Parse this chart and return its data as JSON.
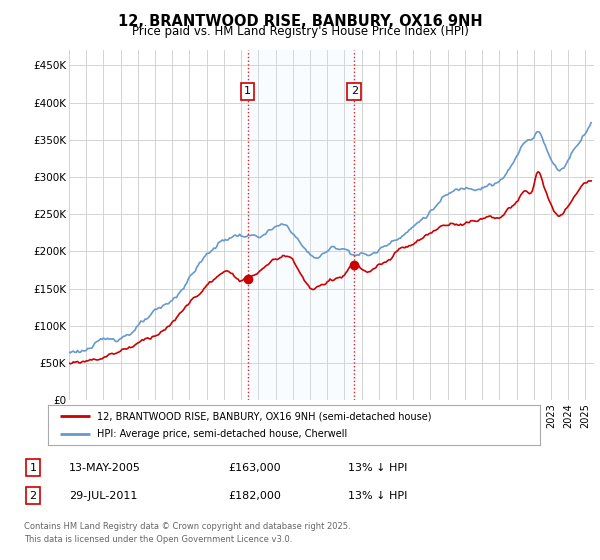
{
  "title": "12, BRANTWOOD RISE, BANBURY, OX16 9NH",
  "subtitle": "Price paid vs. HM Land Registry's House Price Index (HPI)",
  "ylabel_ticks": [
    "£0",
    "£50K",
    "£100K",
    "£150K",
    "£200K",
    "£250K",
    "£300K",
    "£350K",
    "£400K",
    "£450K"
  ],
  "ytick_values": [
    0,
    50000,
    100000,
    150000,
    200000,
    250000,
    300000,
    350000,
    400000,
    450000
  ],
  "ylim": [
    0,
    470000
  ],
  "xlim_start": 1995.0,
  "xlim_end": 2025.5,
  "hpi_color": "#6699cc",
  "price_color": "#cc0000",
  "vline_color": "#cc0000",
  "shade_color": "#ddeeff",
  "marker1_x": 2005.37,
  "marker2_x": 2011.58,
  "marker1_price": 163000,
  "marker2_price": 182000,
  "legend_label_price": "12, BRANTWOOD RISE, BANBURY, OX16 9NH (semi-detached house)",
  "legend_label_hpi": "HPI: Average price, semi-detached house, Cherwell",
  "table_row1": [
    "1",
    "13-MAY-2005",
    "£163,000",
    "13% ↓ HPI"
  ],
  "table_row2": [
    "2",
    "29-JUL-2011",
    "£182,000",
    "13% ↓ HPI"
  ],
  "footer": "Contains HM Land Registry data © Crown copyright and database right 2025.\nThis data is licensed under the Open Government Licence v3.0.",
  "background_color": "#ffffff",
  "plot_bg_color": "#ffffff",
  "grid_color": "#cccccc"
}
